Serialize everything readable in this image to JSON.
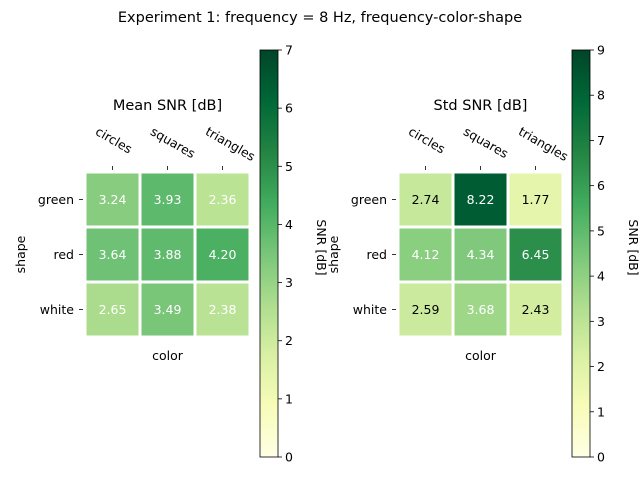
{
  "figure": {
    "suptitle": "Experiment 1: frequency = 8 Hz, frequency-color-shape"
  },
  "chart_data": [
    {
      "type": "heatmap",
      "title": "Mean SNR [dB]",
      "xlabel": "color",
      "ylabel": "shape",
      "x_categories": [
        "circles",
        "squares",
        "triangles"
      ],
      "y_categories": [
        "green",
        "red",
        "white"
      ],
      "values": [
        [
          3.24,
          3.93,
          2.36
        ],
        [
          3.64,
          3.88,
          4.2
        ],
        [
          2.65,
          3.49,
          2.38
        ]
      ],
      "value_labels": [
        [
          "3.24",
          "3.93",
          "2.36"
        ],
        [
          "3.64",
          "3.88",
          "4.20"
        ],
        [
          "2.65",
          "3.49",
          "2.38"
        ]
      ],
      "colorbar": {
        "label": "SNR [dB]",
        "range": [
          0,
          7
        ],
        "ticks": [
          0,
          1,
          2,
          3,
          4,
          5,
          6,
          7
        ],
        "tick_labels": [
          "0",
          "1",
          "2",
          "3",
          "4",
          "5",
          "6",
          "7"
        ],
        "colormap": "YlGn"
      }
    },
    {
      "type": "heatmap",
      "title": "Std SNR [dB]",
      "xlabel": "color",
      "ylabel": "shape",
      "x_categories": [
        "circles",
        "squares",
        "triangles"
      ],
      "y_categories": [
        "green",
        "red",
        "white"
      ],
      "values": [
        [
          2.74,
          8.22,
          1.77
        ],
        [
          4.12,
          4.34,
          6.45
        ],
        [
          2.59,
          3.68,
          2.43
        ]
      ],
      "value_labels": [
        [
          "2.74",
          "8.22",
          "1.77"
        ],
        [
          "4.12",
          "4.34",
          "6.45"
        ],
        [
          "2.59",
          "3.68",
          "2.43"
        ]
      ],
      "colorbar": {
        "label": "SNR [dB]",
        "range": [
          0,
          9
        ],
        "ticks": [
          0,
          1,
          2,
          3,
          4,
          5,
          6,
          7,
          8,
          9
        ],
        "tick_labels": [
          "0",
          "1",
          "2",
          "3",
          "4",
          "5",
          "6",
          "7",
          "8",
          "9"
        ],
        "colormap": "YlGn"
      }
    }
  ],
  "colormap_stops": [
    "#ffffe5",
    "#f7fcb9",
    "#d9f0a3",
    "#addd8e",
    "#78c679",
    "#41ab5d",
    "#238443",
    "#006837",
    "#004529"
  ]
}
